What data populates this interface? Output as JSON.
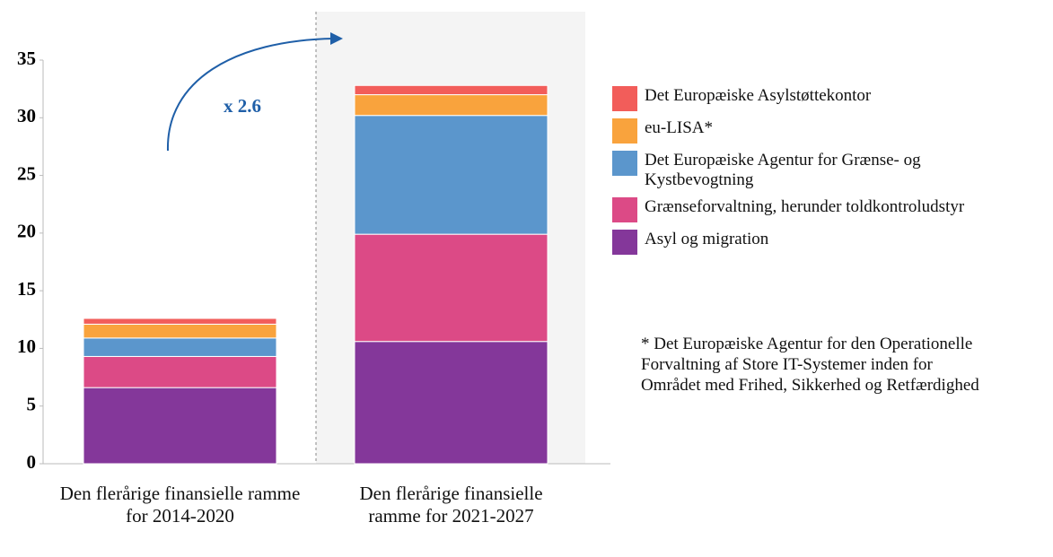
{
  "chart_data": {
    "type": "stacked-bar",
    "categories": [
      "Den flerårige finansielle ramme for 2014-2020",
      "Den flerårige finansielle ramme for 2021-2027"
    ],
    "series": [
      {
        "name": "Asyl og migration",
        "color": "#84379a",
        "values": [
          6.6,
          10.6
        ]
      },
      {
        "name": "Grænseforvaltning, herunder toldkontroludstyr",
        "color": "#dc4a86",
        "values": [
          2.7,
          9.3
        ]
      },
      {
        "name": "Det Europæiske Agentur for Grænse- og Kystbevogtning",
        "color": "#5b96cc",
        "values": [
          1.6,
          10.3
        ]
      },
      {
        "name": "eu-LISA*",
        "color": "#f9a33d",
        "values": [
          1.2,
          1.8
        ]
      },
      {
        "name": "Det Europæiske Asylstøttekontor",
        "color": "#f25d5a",
        "values": [
          0.5,
          0.8
        ]
      }
    ],
    "ylim": [
      0,
      35
    ],
    "yticks": [
      0,
      5,
      10,
      15,
      20,
      25,
      30,
      35
    ],
    "annotation": "x 2.6",
    "footnote": "* Det Europæiske Agentur for den Operationelle Forvaltning af Store IT-Systemer inden for Området med Frihed, Sikkerhed og Retfærdighed"
  }
}
